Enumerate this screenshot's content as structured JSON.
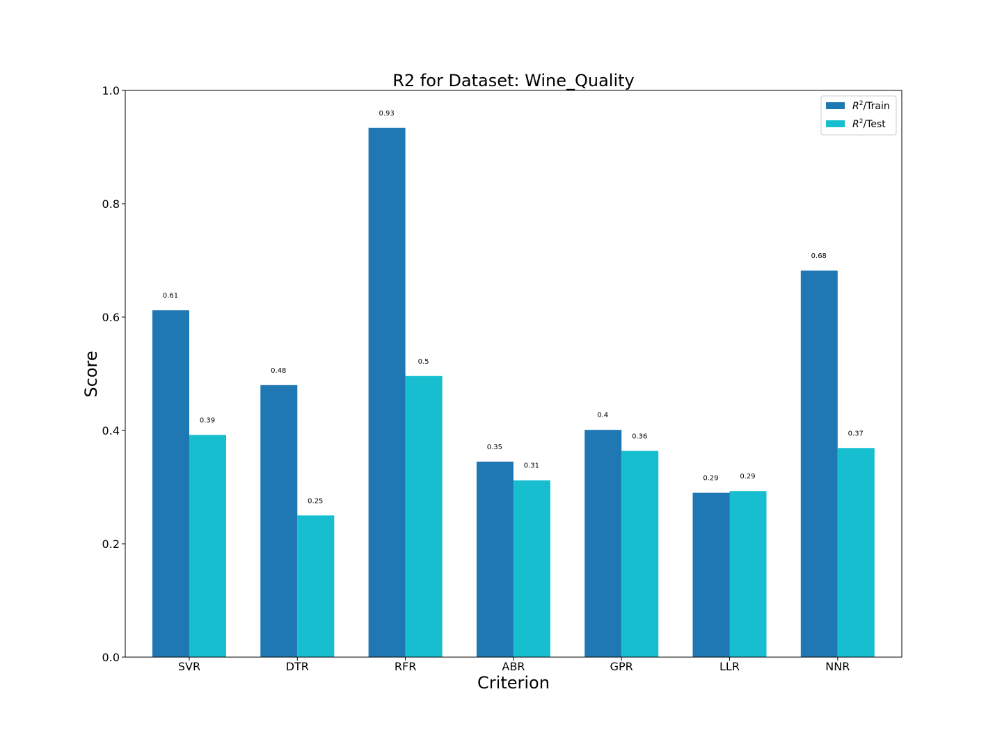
{
  "chart_data": {
    "type": "bar",
    "title": "R2 for Dataset: Wine_Quality",
    "xlabel": "Criterion",
    "ylabel": "Score",
    "ylim": [
      0,
      1.0
    ],
    "yticks": [
      "0.0",
      "0.2",
      "0.4",
      "0.6",
      "0.8",
      "1.0"
    ],
    "categories": [
      "SVR",
      "DTR",
      "RFR",
      "ABR",
      "GPR",
      "LLR",
      "NNR"
    ],
    "series": [
      {
        "name": "R^2/Train",
        "legend_base": "R",
        "legend_sup": "2",
        "legend_suffix": "/Train",
        "color": "#1f77b4",
        "values": [
          0.612,
          0.48,
          0.934,
          0.345,
          0.401,
          0.29,
          0.682
        ],
        "labels": [
          "0.61",
          "0.48",
          "0.93",
          "0.35",
          "0.4",
          "0.29",
          "0.68"
        ]
      },
      {
        "name": "R^2/Test",
        "legend_base": "R",
        "legend_sup": "2",
        "legend_suffix": "/Test",
        "color": "#17becf",
        "values": [
          0.392,
          0.25,
          0.496,
          0.312,
          0.364,
          0.293,
          0.369
        ],
        "labels": [
          "0.39",
          "0.25",
          "0.5",
          "0.31",
          "0.36",
          "0.29",
          "0.37"
        ]
      }
    ],
    "legend_position": "top-right",
    "grid": false
  }
}
